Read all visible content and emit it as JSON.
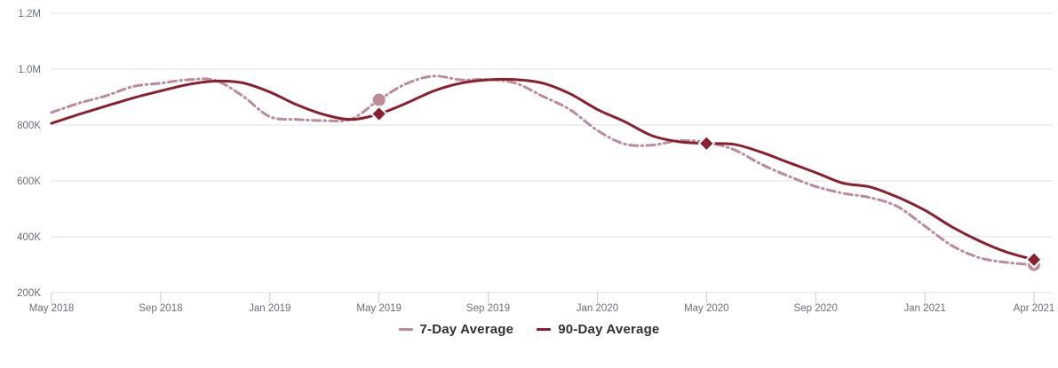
{
  "chart_data": {
    "type": "line",
    "title": "",
    "x_axis_type": "categorical-even",
    "x_note": "37 evenly spaced samples from May 2018 to Apr 2021; tick every 4th sample",
    "x_tick_labels": [
      "May 2018",
      "Sep 2018",
      "Jan 2019",
      "May 2019",
      "Sep 2019",
      "Jan 2020",
      "May 2020",
      "Sep 2020",
      "Jan 2021",
      "Apr 2021"
    ],
    "x_tick_sample_indices": [
      0,
      4,
      8,
      12,
      16,
      20,
      24,
      28,
      32,
      36
    ],
    "y_tick_labels": [
      "200K",
      "400K",
      "600K",
      "800K",
      "1.0M",
      "1.2M"
    ],
    "y_tick_values_k": [
      200,
      400,
      600,
      800,
      1000,
      1200
    ],
    "ylim_k": [
      200,
      1200
    ],
    "grid": true,
    "legend_position": "bottom-center",
    "series": [
      {
        "name": "7-Day Average",
        "style": "dashed",
        "color": "#BB8B98",
        "values_k": [
          845,
          878,
          905,
          938,
          950,
          962,
          960,
          904,
          830,
          820,
          816,
          822,
          890,
          948,
          975,
          962,
          963,
          950,
          903,
          855,
          781,
          732,
          728,
          744,
          738,
          712,
          660,
          617,
          580,
          556,
          540,
          508,
          438,
          368,
          325,
          308,
          300
        ]
      },
      {
        "name": "90-Day Average",
        "style": "solid",
        "color": "#8B1E2F",
        "values_k": [
          806,
          838,
          868,
          897,
          922,
          945,
          957,
          951,
          918,
          872,
          837,
          820,
          840,
          878,
          922,
          950,
          962,
          963,
          950,
          912,
          856,
          812,
          762,
          740,
          734,
          731,
          703,
          666,
          630,
          592,
          578,
          542,
          495,
          435,
          385,
          345,
          318
        ]
      }
    ],
    "markers": [
      {
        "series": "7-Day Average",
        "index": 12,
        "value_k": 890,
        "shape": "circle"
      },
      {
        "series": "90-Day Average",
        "index": 12,
        "value_k": 840,
        "shape": "diamond"
      },
      {
        "series": "90-Day Average",
        "index": 24,
        "value_k": 734,
        "shape": "diamond"
      },
      {
        "series": "7-Day Average",
        "index": 36,
        "value_k": 300,
        "shape": "circle"
      },
      {
        "series": "90-Day Average",
        "index": 36,
        "value_k": 318,
        "shape": "diamond"
      }
    ]
  },
  "legend": {
    "items": [
      {
        "label": "7-Day Average"
      },
      {
        "label": "90-Day Average"
      }
    ]
  },
  "colors": {
    "series_7day": "#BB8B98",
    "series_90day": "#8B1E2F",
    "gridline": "#e1e1e1",
    "tick_mark": "#b9cfdf",
    "axis_text": "#6a6f77",
    "legend_text": "#303030",
    "background": "#ffffff"
  }
}
